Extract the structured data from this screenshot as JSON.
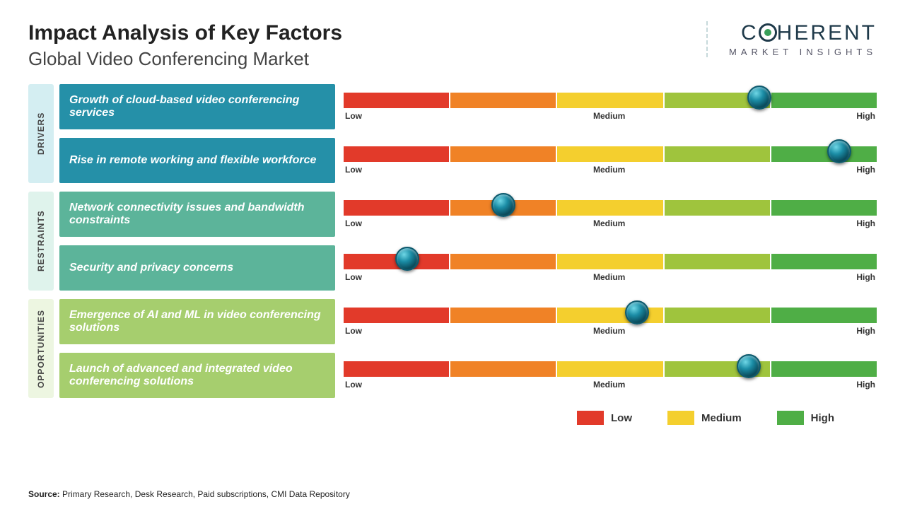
{
  "title": "Impact Analysis of Key Factors",
  "subtitle": "Global Video Conferencing Market",
  "logo": {
    "main": "C HERENT",
    "sub": "MARKET INSIGHTS"
  },
  "bar": {
    "segments": [
      "#e23a2a",
      "#f08226",
      "#f4cf2e",
      "#9fc43d",
      "#4fae46"
    ],
    "labels": {
      "low": "Low",
      "mid": "Medium",
      "high": "High"
    }
  },
  "categories": [
    {
      "name": "DRIVERS",
      "bg": "#d4eef2",
      "box_bg": "#2590a8",
      "factors": [
        {
          "text": "Growth of cloud-based video conferencing services",
          "marker_pct": 78
        },
        {
          "text": "Rise in remote working and flexible workforce",
          "marker_pct": 93
        }
      ]
    },
    {
      "name": "RESTRAINTS",
      "bg": "#dff3ec",
      "box_bg": "#5cb49a",
      "factors": [
        {
          "text": "Network connectivity issues and bandwidth constraints",
          "marker_pct": 30
        },
        {
          "text": "Security and privacy concerns",
          "marker_pct": 12
        }
      ]
    },
    {
      "name": "OPPORTUNITIES",
      "bg": "#edf6e1",
      "box_bg": "#a6ce6e",
      "factors": [
        {
          "text": "Emergence of AI and ML in video conferencing solutions",
          "marker_pct": 55
        },
        {
          "text": "Launch of advanced and integrated video conferencing solutions",
          "marker_pct": 76
        }
      ]
    }
  ],
  "legend": [
    {
      "label": "Low",
      "color": "#e23a2a"
    },
    {
      "label": "Medium",
      "color": "#f4cf2e"
    },
    {
      "label": "High",
      "color": "#4fae46"
    }
  ],
  "footer": {
    "prefix": "Source:",
    "text": " Primary Research, Desk Research, Paid subscriptions, CMI Data Repository"
  }
}
